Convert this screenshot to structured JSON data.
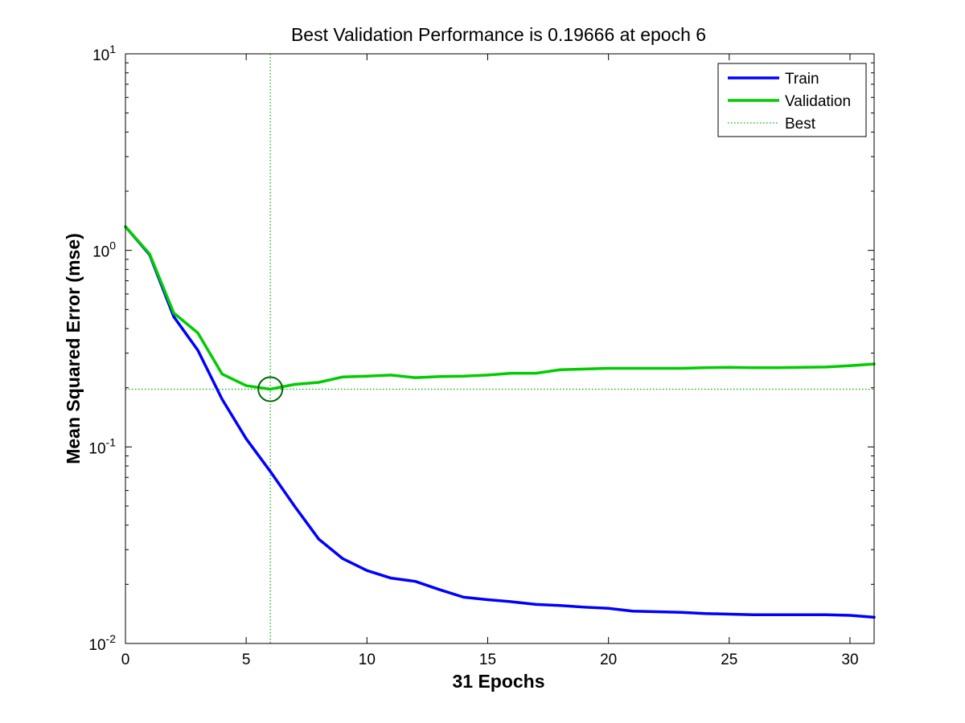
{
  "chart_data": {
    "type": "line",
    "title": "Best Validation Performance is 0.19666 at epoch 6",
    "xlabel": "31 Epochs",
    "ylabel": "Mean Squared Error  (mse)",
    "xlim": [
      0,
      31
    ],
    "ylim": [
      0.01,
      10
    ],
    "yscale": "log",
    "grid": false,
    "legend_position": "top-right",
    "x_ticks": [
      0,
      5,
      10,
      15,
      20,
      25,
      30
    ],
    "y_ticks": [
      {
        "value": 10,
        "base": "10",
        "exp": "1"
      },
      {
        "value": 1,
        "base": "10",
        "exp": "0"
      },
      {
        "value": 0.1,
        "base": "10",
        "exp": "-1"
      },
      {
        "value": 0.01,
        "base": "10",
        "exp": "-2"
      }
    ],
    "x": [
      0,
      1,
      2,
      3,
      4,
      5,
      6,
      7,
      8,
      9,
      10,
      11,
      12,
      13,
      14,
      15,
      16,
      17,
      18,
      19,
      20,
      21,
      22,
      23,
      24,
      25,
      26,
      27,
      28,
      29,
      30,
      31
    ],
    "series": [
      {
        "name": "Train",
        "color": "#0000ff",
        "style": "solid",
        "values": [
          1.32,
          0.95,
          0.46,
          0.31,
          0.175,
          0.11,
          0.075,
          0.05,
          0.034,
          0.027,
          0.0235,
          0.0215,
          0.0207,
          0.0188,
          0.0172,
          0.0167,
          0.0163,
          0.0158,
          0.0156,
          0.0153,
          0.0151,
          0.0146,
          0.0145,
          0.0144,
          0.0142,
          0.0141,
          0.014,
          0.014,
          0.014,
          0.014,
          0.0139,
          0.0136
        ]
      },
      {
        "name": "Validation",
        "color": "#00cc00",
        "style": "solid",
        "values": [
          1.32,
          0.96,
          0.48,
          0.38,
          0.235,
          0.205,
          0.19666,
          0.208,
          0.213,
          0.227,
          0.229,
          0.232,
          0.225,
          0.228,
          0.229,
          0.232,
          0.237,
          0.237,
          0.247,
          0.249,
          0.251,
          0.251,
          0.251,
          0.251,
          0.253,
          0.254,
          0.253,
          0.253,
          0.254,
          0.255,
          0.259,
          0.264
        ]
      }
    ],
    "best": {
      "name": "Best",
      "epoch": 6,
      "value": 0.19666,
      "color": "#00aa00",
      "style": "dotted"
    }
  }
}
